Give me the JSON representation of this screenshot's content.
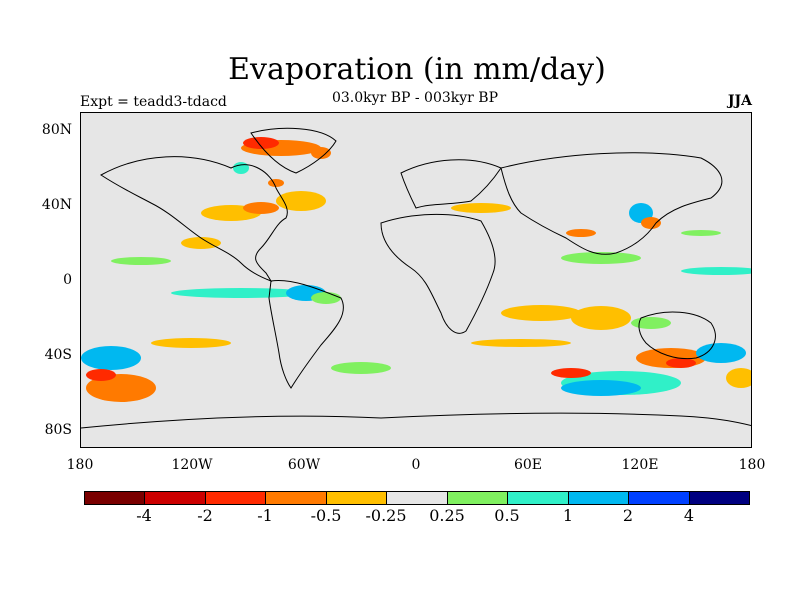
{
  "title": "Evaporation (in mm/day)",
  "subtitle": "03.0kyr BP - 003kyr BP",
  "experiment": "Expt = teadd3-tdacd",
  "season": "JJA",
  "lat_labels": [
    "80N",
    "40N",
    "0",
    "40S",
    "80S"
  ],
  "lon_labels": [
    "180",
    "120W",
    "60W",
    "0",
    "60E",
    "120E",
    "180"
  ],
  "colorbar": {
    "colors": [
      "#7a0000",
      "#cc0000",
      "#ff2a00",
      "#ff7a00",
      "#ffbf00",
      "#e6e6e6",
      "#80f060",
      "#30f0c8",
      "#00b8f0",
      "#0040ff",
      "#000080"
    ],
    "labels": [
      "-4",
      "-2",
      "-1",
      "-0.5",
      "-0.25",
      "0.25",
      "0.5",
      "1",
      "2",
      "4"
    ]
  }
}
